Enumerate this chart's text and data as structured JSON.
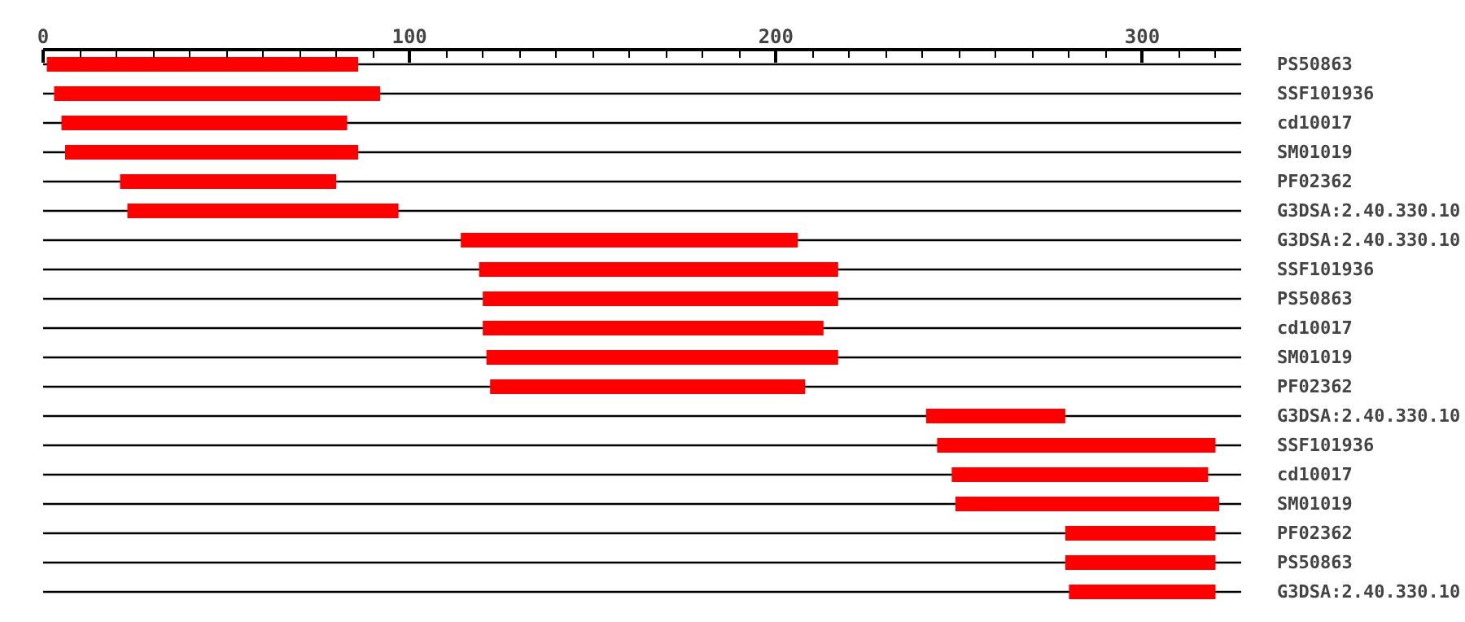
{
  "chart_data": {
    "type": "bar",
    "orientation": "horizontal",
    "color": "#ff0000",
    "grid": "y",
    "categories": [
      "PS50863",
      "SSF101936",
      "cd10017",
      "SM01019",
      "PF02362",
      "G3DSA:2.40.330.10",
      "G3DSA:2.40.330.10",
      "SSF101936",
      "PS50863",
      "cd10017",
      "SM01019",
      "PF02362",
      "G3DSA:2.40.330.10",
      "SSF101936",
      "cd10017",
      "SM01019",
      "PF02362",
      "PS50863",
      "G3DSA:2.40.330.10"
    ],
    "base": [
      1,
      3,
      5,
      6,
      21,
      23,
      114,
      119,
      120,
      120,
      121,
      122,
      241,
      244,
      248,
      249,
      279,
      279,
      280
    ],
    "values": [
      85,
      89,
      78,
      80,
      59,
      74,
      92,
      98,
      97,
      93,
      96,
      86,
      38,
      76,
      70,
      72,
      41,
      41,
      40
    ],
    "xlim": [
      0,
      327
    ],
    "xticks": [
      0,
      {
        "value": 10,
        "label": null
      },
      {
        "value": 20,
        "label": null
      },
      {
        "value": 30,
        "label": null
      },
      {
        "value": 40,
        "label": null
      },
      {
        "value": 50,
        "label": null
      },
      {
        "value": 60,
        "label": null
      },
      {
        "value": 70,
        "label": null
      },
      {
        "value": 80,
        "label": null
      },
      {
        "value": 90,
        "label": null
      },
      100,
      {
        "value": 110,
        "label": null
      },
      {
        "value": 120,
        "label": null
      },
      {
        "value": 130,
        "label": null
      },
      {
        "value": 140,
        "label": null
      },
      {
        "value": 150,
        "label": null
      },
      {
        "value": 160,
        "label": null
      },
      {
        "value": 170,
        "label": null
      },
      {
        "value": 180,
        "label": null
      },
      {
        "value": 190,
        "label": null
      },
      200,
      {
        "value": 210,
        "label": null
      },
      {
        "value": 220,
        "label": null
      },
      {
        "value": 230,
        "label": null
      },
      {
        "value": 240,
        "label": null
      },
      {
        "value": 250,
        "label": null
      },
      {
        "value": 260,
        "label": null
      },
      {
        "value": 270,
        "label": null
      },
      {
        "value": 280,
        "label": null
      },
      {
        "value": 290,
        "label": null
      },
      300,
      {
        "value": 310,
        "label": null
      },
      {
        "value": 320,
        "label": null
      }
    ]
  }
}
